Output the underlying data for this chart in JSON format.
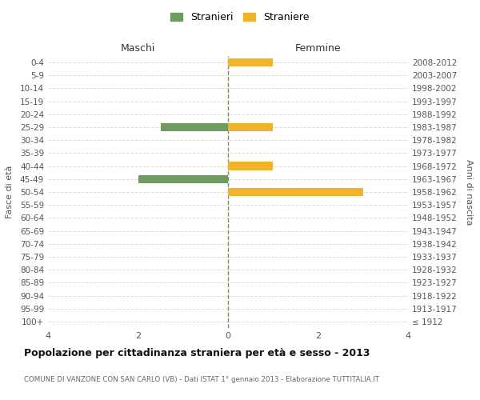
{
  "age_groups": [
    "0-4",
    "5-9",
    "10-14",
    "15-19",
    "20-24",
    "25-29",
    "30-34",
    "35-39",
    "40-44",
    "45-49",
    "50-54",
    "55-59",
    "60-64",
    "65-69",
    "70-74",
    "75-79",
    "80-84",
    "85-89",
    "90-94",
    "95-99",
    "100+"
  ],
  "birth_years": [
    "2008-2012",
    "2003-2007",
    "1998-2002",
    "1993-1997",
    "1988-1992",
    "1983-1987",
    "1978-1982",
    "1973-1977",
    "1968-1972",
    "1963-1967",
    "1958-1962",
    "1953-1957",
    "1948-1952",
    "1943-1947",
    "1938-1942",
    "1933-1937",
    "1928-1932",
    "1923-1927",
    "1918-1922",
    "1913-1917",
    "≤ 1912"
  ],
  "maschi": [
    0,
    0,
    0,
    0,
    0,
    1.5,
    0,
    0,
    0,
    2,
    0,
    0,
    0,
    0,
    0,
    0,
    0,
    0,
    0,
    0,
    0
  ],
  "femmine": [
    1,
    0,
    0,
    0,
    0,
    1,
    0,
    0,
    1,
    0,
    3,
    0,
    0,
    0,
    0,
    0,
    0,
    0,
    0,
    0,
    0
  ],
  "male_color": "#6e9c5e",
  "female_color": "#f0b429",
  "xlim": 4,
  "title": "Popolazione per cittadinanza straniera per età e sesso - 2013",
  "subtitle": "COMUNE DI VANZONE CON SAN CARLO (VB) - Dati ISTAT 1° gennaio 2013 - Elaborazione TUTTITALIA.IT",
  "ylabel_left": "Fasce di età",
  "ylabel_right": "Anni di nascita",
  "xlabel_maschi": "Maschi",
  "xlabel_femmine": "Femmine",
  "legend_male": "Stranieri",
  "legend_female": "Straniere",
  "background_color": "#ffffff",
  "grid_color": "#dddddd",
  "center_line_color": "#8b8b4b"
}
